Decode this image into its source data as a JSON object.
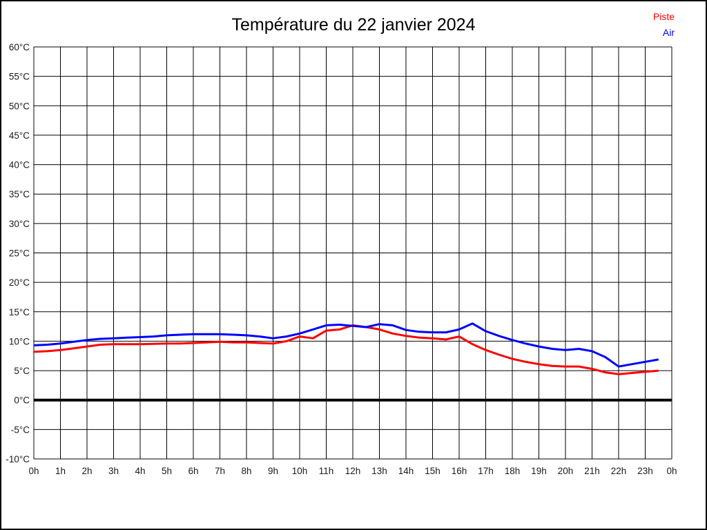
{
  "page": {
    "background": "#ffffff",
    "border_color": "#000000"
  },
  "header": {
    "title": "Température du 22 janvier 2024"
  },
  "legend": {
    "position": "top-right",
    "entries": [
      {
        "label": "Piste",
        "color": "#ff0000"
      },
      {
        "label": "Air",
        "color": "#0000ff"
      }
    ]
  },
  "chart_data": {
    "type": "line",
    "title": "Température du 22 janvier 2024",
    "xlabel": "",
    "ylabel": "",
    "x_unit": "hour of day",
    "y_unit": "°C",
    "xlim": [
      0,
      24
    ],
    "ylim": [
      -10,
      60
    ],
    "grid": true,
    "x_tick_step_hours": 1,
    "y_tick_step_degrees": 5,
    "x_ticklabels": [
      "0h",
      "1h",
      "2h",
      "3h",
      "4h",
      "5h",
      "6h",
      "7h",
      "8h",
      "9h",
      "10h",
      "11h",
      "12h",
      "13h",
      "14h",
      "15h",
      "16h",
      "17h",
      "18h",
      "19h",
      "20h",
      "21h",
      "22h",
      "23h",
      "0h"
    ],
    "y_ticklabels": [
      "60°C",
      "55°C",
      "50°C",
      "45°C",
      "40°C",
      "35°C",
      "30°C",
      "25°C",
      "20°C",
      "15°C",
      "10°C",
      "5°C",
      "0°C",
      "-5°C",
      "-10°C"
    ],
    "zero_line": {
      "value": 0,
      "thick": true,
      "color": "#000000"
    },
    "grid_color": "#000000",
    "x": [
      0,
      0.5,
      1,
      1.5,
      2,
      2.5,
      3,
      3.5,
      4,
      4.5,
      5,
      5.5,
      6,
      6.5,
      7,
      7.5,
      8,
      8.5,
      9,
      9.5,
      10,
      10.5,
      11,
      11.5,
      12,
      12.5,
      13,
      13.5,
      14,
      14.5,
      15,
      15.5,
      16,
      16.5,
      17,
      17.5,
      18,
      18.5,
      19,
      19.5,
      20,
      20.5,
      21,
      21.5,
      22,
      22.5,
      23,
      23.5
    ],
    "series": [
      {
        "name": "Piste",
        "color": "#ff0000",
        "values": [
          8.2,
          8.3,
          8.5,
          8.8,
          9.1,
          9.4,
          9.5,
          9.5,
          9.5,
          9.55,
          9.6,
          9.6,
          9.7,
          9.8,
          9.9,
          9.8,
          9.8,
          9.7,
          9.6,
          10.0,
          10.8,
          10.5,
          11.8,
          12.0,
          12.7,
          12.4,
          12.0,
          11.3,
          10.9,
          10.6,
          10.5,
          10.3,
          10.8,
          9.5,
          8.5,
          7.7,
          7.0,
          6.5,
          6.1,
          5.8,
          5.7,
          5.7,
          5.3,
          4.7,
          4.4,
          4.6,
          4.8,
          5.0
        ]
      },
      {
        "name": "Air",
        "color": "#0000ff",
        "values": [
          9.3,
          9.4,
          9.6,
          9.9,
          10.2,
          10.4,
          10.5,
          10.6,
          10.7,
          10.8,
          11.0,
          11.1,
          11.2,
          11.2,
          11.2,
          11.1,
          11.0,
          10.8,
          10.5,
          10.8,
          11.3,
          12.0,
          12.7,
          12.8,
          12.6,
          12.4,
          12.9,
          12.7,
          11.9,
          11.6,
          11.5,
          11.5,
          12.0,
          13.0,
          11.7,
          10.9,
          10.2,
          9.6,
          9.1,
          8.7,
          8.5,
          8.7,
          8.3,
          7.3,
          5.7,
          6.1,
          6.5,
          6.9
        ]
      }
    ],
    "legend_position": "top-right"
  }
}
